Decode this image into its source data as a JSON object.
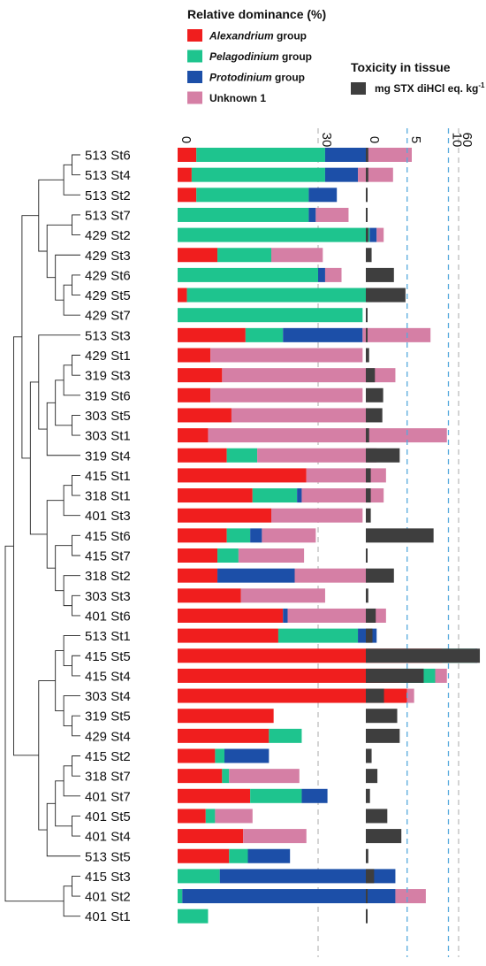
{
  "chart_data": [
    {
      "type": "bar",
      "stacked": true,
      "orientation": "horizontal",
      "title": "Relative dominance (%)",
      "xlim": [
        0,
        65
      ],
      "ticks": [
        0,
        30,
        60
      ],
      "grid": "dashed-vertical",
      "categories": [
        "513 St6",
        "513 St4",
        "513 St2",
        "513 St7",
        "429 St2",
        "429 St3",
        "429 St6",
        "429 St5",
        "429 St7",
        "513 St3",
        "429 St1",
        "319 St3",
        "319 St6",
        "303 St5",
        "303 St1",
        "319 St4",
        "415 St1",
        "318 St1",
        "401 St3",
        "415 St6",
        "415 St7",
        "318 St2",
        "303 St3",
        "401 St6",
        "513 St1",
        "415 St5",
        "415 St4",
        "303 St4",
        "319 St5",
        "429 St4",
        "415 St2",
        "318 St7",
        "401 St7",
        "401 St5",
        "401 St4",
        "513 St5",
        "415 St3",
        "401 St2",
        "401 St1"
      ],
      "series": [
        {
          "name": "Alexandrium",
          "name_suffix": " group",
          "color": "#f01e1e",
          "values": [
            4,
            3,
            4,
            0,
            0,
            8.5,
            0,
            2,
            0,
            14.5,
            7,
            9.5,
            7,
            11.5,
            6.5,
            10.5,
            27.5,
            16,
            20,
            10.5,
            8.5,
            8.5,
            13.5,
            22.5,
            21.5,
            56.5,
            47.5,
            49,
            20.5,
            19.5,
            8,
            9.5,
            15.5,
            6,
            14,
            11,
            0,
            0,
            0
          ]
        },
        {
          "name": "Pelagodinium",
          "name_suffix": " group",
          "color": "#1ec48e",
          "values": [
            27.5,
            28.5,
            24,
            28,
            41,
            11.5,
            30,
            39.5,
            39.5,
            8,
            0,
            0,
            0,
            0,
            0,
            6.5,
            0,
            9.5,
            0,
            5,
            4.5,
            0,
            0,
            0,
            17,
            7,
            7.5,
            0,
            0,
            7,
            2,
            1.5,
            11,
            2,
            0,
            4,
            9,
            1,
            6.5
          ]
        },
        {
          "name": "Protodinium",
          "name_suffix": " group",
          "color": "#1c4fa8",
          "values": [
            9,
            7,
            6,
            1.5,
            1.5,
            0,
            1.5,
            0,
            0,
            17,
            0,
            0,
            0,
            0,
            0,
            0,
            0,
            1,
            0,
            2.5,
            0,
            16.5,
            0,
            1,
            4,
            0.5,
            0,
            0,
            0,
            0,
            9.5,
            0,
            5.5,
            0,
            0,
            9,
            37.5,
            45.5,
            0
          ]
        },
        {
          "name": "Unknown 1",
          "name_suffix": "",
          "color": "#d57fa5",
          "values": [
            9.5,
            7.5,
            0,
            7,
            1.5,
            11,
            3.5,
            2,
            0,
            14.5,
            32.5,
            37,
            32.5,
            29,
            51,
            25.5,
            17,
            17.5,
            19.5,
            11.5,
            14,
            15.5,
            18,
            21,
            0,
            0,
            2.5,
            1.5,
            0,
            0,
            0,
            15,
            0,
            8,
            13.5,
            0,
            0,
            6.5,
            0
          ]
        }
      ]
    },
    {
      "type": "bar",
      "orientation": "horizontal",
      "title": "Toxicity in tissue",
      "legend_label": "mg STX diHCl eq. kg",
      "legend_label_sup": "-1",
      "color": "#3e3e3e",
      "xlim": [
        0,
        14
      ],
      "ticks": [
        0,
        5,
        10
      ],
      "grid": "dashed-vertical",
      "categories": [
        "513 St6",
        "513 St4",
        "513 St2",
        "513 St7",
        "429 St2",
        "429 St3",
        "429 St6",
        "429 St5",
        "429 St7",
        "513 St3",
        "429 St1",
        "319 St3",
        "319 St6",
        "303 St5",
        "303 St1",
        "319 St4",
        "415 St1",
        "318 St1",
        "401 St3",
        "415 St6",
        "415 St7",
        "318 St2",
        "303 St3",
        "401 St6",
        "513 St1",
        "415 St5",
        "415 St4",
        "303 St4",
        "319 St5",
        "429 St4",
        "415 St2",
        "318 St7",
        "401 St7",
        "401 St5",
        "401 St4",
        "513 St5",
        "415 St3",
        "401 St2",
        "401 St1"
      ],
      "values": [
        0.3,
        0.3,
        0.2,
        0.2,
        0.3,
        0.7,
        3.4,
        4.8,
        0.2,
        0.2,
        0.4,
        1.1,
        2.1,
        2.0,
        0.4,
        4.1,
        0.6,
        0.6,
        0.6,
        8.2,
        0.1,
        3.4,
        0.3,
        1.2,
        0.8,
        13.8,
        7.0,
        2.2,
        3.8,
        4.1,
        0.7,
        1.4,
        0.5,
        2.6,
        4.3,
        0.3,
        1.0,
        0.2,
        0.2
      ]
    }
  ],
  "dendrogram": {
    "leaf_order": "same as categories"
  }
}
